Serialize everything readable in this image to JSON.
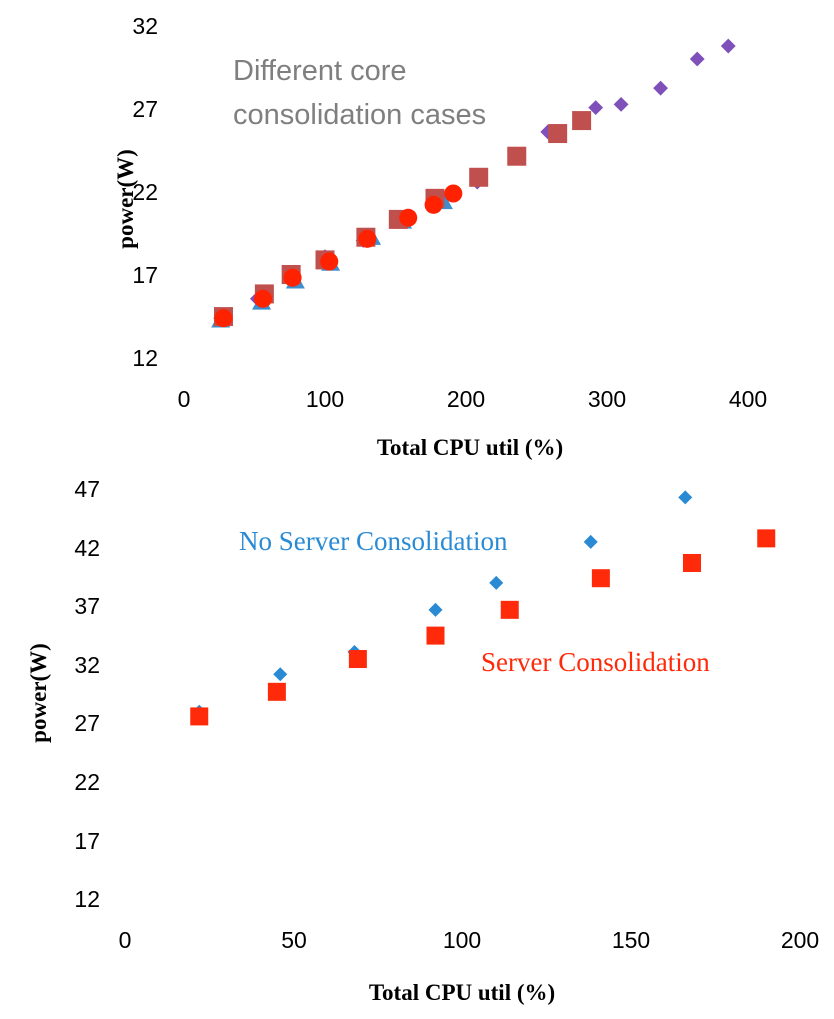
{
  "chart_data": [
    {
      "type": "scatter",
      "xlabel": "Total CPU util (%)",
      "ylabel": "power(W)",
      "xlim": [
        0,
        400
      ],
      "ylim": [
        12,
        32
      ],
      "xticks": [
        "0",
        "100",
        "200",
        "300",
        "400"
      ],
      "yticks": [
        "12",
        "17",
        "22",
        "27",
        "32"
      ],
      "grid": false,
      "annotations": [
        {
          "lines": [
            "Different core",
            "consolidation cases"
          ],
          "color": "#7f7f7f"
        }
      ],
      "series": [
        {
          "marker": "diamond",
          "color": "#7f4fba",
          "x": [
            26,
            52,
            76,
            100,
            127,
            152,
            180,
            208,
            258,
            292,
            310,
            338,
            364,
            386
          ],
          "y": [
            13.9,
            15.1,
            16.5,
            17.7,
            18.7,
            19.9,
            21.2,
            22.3,
            25.4,
            26.9,
            27.1,
            28.1,
            29.9,
            30.7
          ]
        },
        {
          "marker": "triangle",
          "color": "#3f8fce",
          "x": [
            26,
            55,
            79,
            104,
            133,
            155,
            184
          ],
          "y": [
            13.8,
            14.9,
            16.2,
            17.3,
            18.9,
            19.9,
            21.1
          ]
        },
        {
          "marker": "square",
          "color": "#c0504d",
          "x": [
            28,
            57,
            76,
            100,
            129,
            152,
            178,
            209,
            236,
            265,
            282
          ],
          "y": [
            14.0,
            15.4,
            16.6,
            17.5,
            18.9,
            20.0,
            21.3,
            22.6,
            23.9,
            25.3,
            26.1
          ]
        },
        {
          "marker": "circle",
          "color": "#ff2200",
          "x": [
            28,
            56,
            77,
            103,
            130,
            159,
            177,
            191
          ],
          "y": [
            13.9,
            15.1,
            16.4,
            17.4,
            18.8,
            20.1,
            20.9,
            21.6
          ]
        }
      ]
    },
    {
      "type": "scatter",
      "xlabel": "Total CPU util (%)",
      "ylabel": "power(W)",
      "xlim": [
        0,
        200
      ],
      "ylim": [
        12,
        47
      ],
      "xticks": [
        "0",
        "50",
        "100",
        "150",
        "200"
      ],
      "yticks": [
        "12",
        "17",
        "22",
        "27",
        "32",
        "37",
        "42",
        "47"
      ],
      "grid": false,
      "series": [
        {
          "name": "No Server Consolidation",
          "marker": "diamond",
          "color": "#2a8ad4",
          "x": [
            22,
            46,
            68,
            92,
            110,
            138,
            166
          ],
          "y": [
            27.9,
            31.1,
            33.0,
            36.6,
            38.9,
            42.4,
            46.2
          ]
        },
        {
          "name": "Server Consolidation",
          "marker": "square",
          "color": "#ff2a0a",
          "x": [
            22,
            45,
            69,
            92,
            114,
            141,
            168,
            190
          ],
          "y": [
            27.5,
            29.6,
            32.4,
            34.4,
            36.6,
            39.3,
            40.6,
            42.7
          ]
        }
      ]
    }
  ]
}
